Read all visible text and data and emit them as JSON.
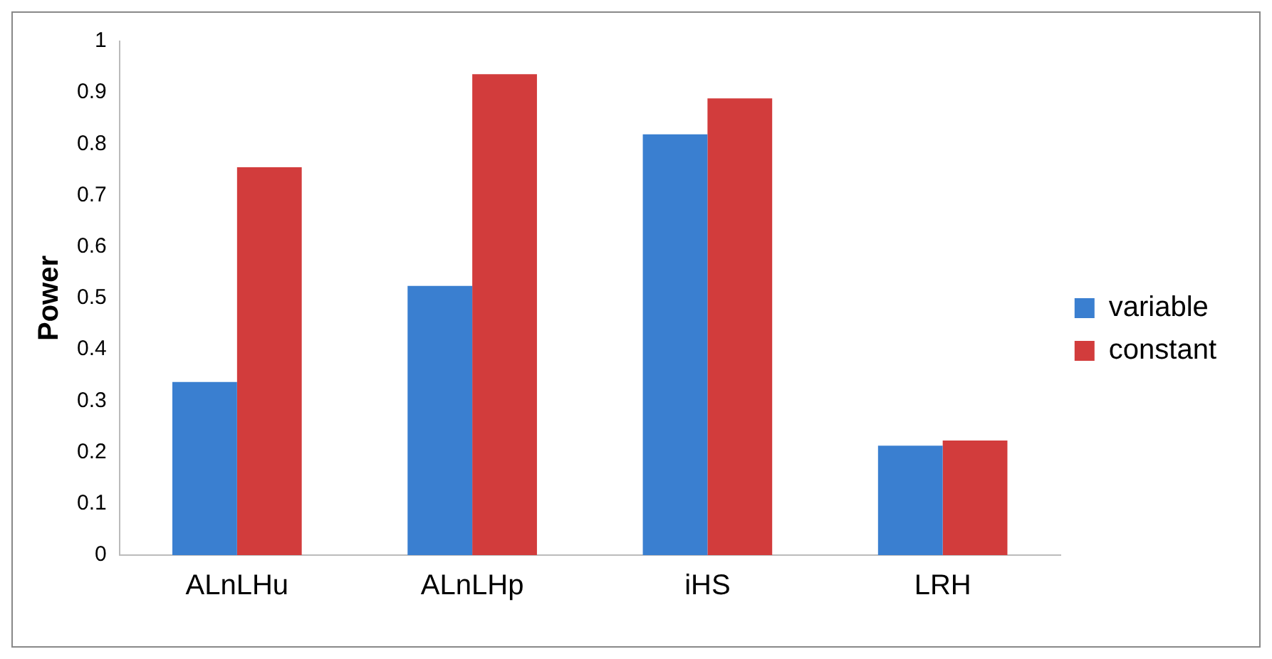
{
  "chart_data": {
    "type": "bar",
    "ylabel": "Power",
    "categories": [
      "ALnLHu",
      "ALnLHp",
      "iHS",
      "LRH"
    ],
    "series": [
      {
        "name": "variable",
        "color": "#3a7fd0",
        "values": [
          0.337,
          0.524,
          0.819,
          0.213
        ]
      },
      {
        "name": "constant",
        "color": "#d23c3c",
        "values": [
          0.755,
          0.936,
          0.889,
          0.223
        ]
      }
    ],
    "ylim": [
      0,
      1
    ],
    "yticks": [
      0,
      0.1,
      0.2,
      0.3,
      0.4,
      0.5,
      0.6,
      0.7,
      0.8,
      0.9,
      1
    ],
    "grid": false,
    "legend": "right"
  }
}
